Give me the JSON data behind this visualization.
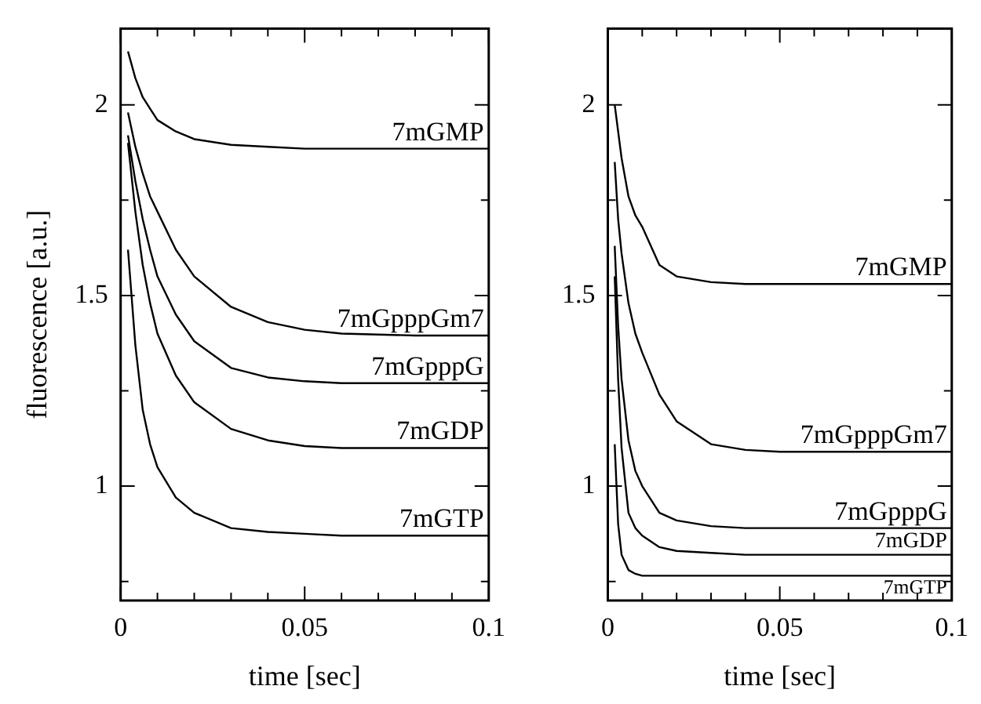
{
  "chart_data": [
    {
      "type": "line",
      "xlabel": "time [sec]",
      "ylabel": "fluorescence [a.u.]",
      "xlim": [
        0,
        0.1
      ],
      "ylim": [
        0.7,
        2.2
      ],
      "xticks": [
        0,
        {
          "value": 0.01,
          "label": null
        },
        {
          "value": 0.02,
          "label": null
        },
        {
          "value": 0.03,
          "label": null
        },
        {
          "value": 0.04,
          "label": null
        },
        0.05,
        {
          "value": 0.06,
          "label": null
        },
        {
          "value": 0.07,
          "label": null
        },
        {
          "value": 0.08,
          "label": null
        },
        {
          "value": 0.09,
          "label": null
        },
        0.1
      ],
      "yticks": [
        {
          "value": 0.75,
          "label": null
        },
        1,
        {
          "value": 1.25,
          "label": null
        },
        1.5,
        {
          "value": 1.75,
          "label": null
        },
        2
      ],
      "grid": false,
      "legend": "right",
      "marker": "none",
      "line_style": "solid",
      "x": [
        0.002,
        0.004,
        0.006,
        0.008,
        0.01,
        0.015,
        0.02,
        0.03,
        0.04,
        0.05,
        0.06,
        0.08,
        0.1
      ],
      "series": [
        {
          "name": "7mGMP",
          "color": "#000000",
          "values": [
            2.14,
            2.07,
            2.02,
            1.99,
            1.96,
            1.93,
            1.91,
            1.895,
            1.89,
            1.885,
            1.885,
            1.885,
            1.885
          ]
        },
        {
          "name": "7mGpppGm7",
          "color": "#000000",
          "values": [
            1.98,
            1.89,
            1.82,
            1.76,
            1.72,
            1.62,
            1.55,
            1.47,
            1.43,
            1.41,
            1.4,
            1.395,
            1.395
          ]
        },
        {
          "name": "7mGpppG",
          "color": "#000000",
          "values": [
            1.92,
            1.8,
            1.7,
            1.62,
            1.55,
            1.45,
            1.38,
            1.31,
            1.285,
            1.275,
            1.27,
            1.27,
            1.27
          ]
        },
        {
          "name": "7mGDP",
          "color": "#000000",
          "values": [
            1.9,
            1.72,
            1.58,
            1.48,
            1.4,
            1.29,
            1.22,
            1.15,
            1.12,
            1.105,
            1.1,
            1.1,
            1.1
          ]
        },
        {
          "name": "7mGTP",
          "color": "#000000",
          "values": [
            1.62,
            1.37,
            1.2,
            1.11,
            1.05,
            0.97,
            0.93,
            0.89,
            0.88,
            0.875,
            0.87,
            0.87,
            0.87
          ]
        }
      ]
    },
    {
      "type": "line",
      "xlabel": "time [sec]",
      "xlim": [
        0,
        0.1
      ],
      "ylim": [
        0.7,
        2.2
      ],
      "xticks": [
        0,
        {
          "value": 0.01,
          "label": null
        },
        {
          "value": 0.02,
          "label": null
        },
        {
          "value": 0.03,
          "label": null
        },
        {
          "value": 0.04,
          "label": null
        },
        0.05,
        {
          "value": 0.06,
          "label": null
        },
        {
          "value": 0.07,
          "label": null
        },
        {
          "value": 0.08,
          "label": null
        },
        {
          "value": 0.09,
          "label": null
        },
        0.1
      ],
      "yticks": [
        {
          "value": 0.75,
          "label": null
        },
        1,
        {
          "value": 1.25,
          "label": null
        },
        1.5,
        {
          "value": 1.75,
          "label": null
        },
        2
      ],
      "grid": false,
      "legend": "right",
      "marker": "none",
      "line_style": "solid",
      "x": [
        0.002,
        0.003,
        0.004,
        0.006,
        0.008,
        0.01,
        0.015,
        0.02,
        0.03,
        0.04,
        0.05,
        0.06,
        0.08,
        0.1
      ],
      "series": [
        {
          "name": "7mGMP",
          "color": "#000000",
          "values": [
            2.0,
            1.93,
            1.86,
            1.76,
            1.71,
            1.68,
            1.58,
            1.55,
            1.535,
            1.53,
            1.53,
            1.53,
            1.53,
            1.53
          ]
        },
        {
          "name": "7mGpppGm7",
          "color": "#000000",
          "values": [
            1.85,
            1.7,
            1.61,
            1.48,
            1.4,
            1.35,
            1.24,
            1.17,
            1.11,
            1.095,
            1.09,
            1.09,
            1.09,
            1.09
          ]
        },
        {
          "name": "7mGpppG",
          "color": "#000000",
          "values": [
            1.63,
            1.42,
            1.28,
            1.12,
            1.04,
            1.0,
            0.93,
            0.91,
            0.895,
            0.89,
            0.89,
            0.89,
            0.89,
            0.89
          ]
        },
        {
          "name": "7mGDP",
          "color": "#000000",
          "values": [
            1.55,
            1.28,
            1.1,
            0.93,
            0.89,
            0.87,
            0.84,
            0.83,
            0.825,
            0.82,
            0.82,
            0.82,
            0.82,
            0.82
          ]
        },
        {
          "name": "7mGTP",
          "color": "#000000",
          "values": [
            1.11,
            0.9,
            0.82,
            0.78,
            0.77,
            0.765,
            0.765,
            0.765,
            0.765,
            0.765,
            0.765,
            0.765,
            0.765,
            0.765
          ]
        }
      ]
    }
  ]
}
